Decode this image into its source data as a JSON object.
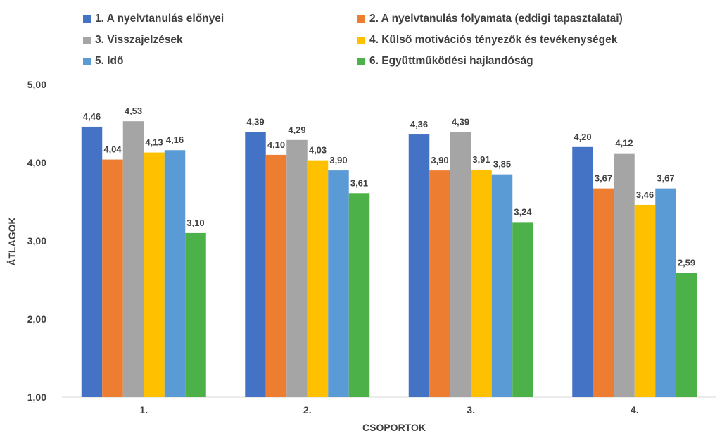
{
  "chart_data": {
    "type": "bar",
    "categories": [
      "1.",
      "2.",
      "3.",
      "4."
    ],
    "series": [
      {
        "name": "1. A nyelvtanulás előnyei",
        "color": "#4472C4",
        "values": [
          4.46,
          4.39,
          4.36,
          4.2
        ],
        "labels": [
          "4,46",
          "4,39",
          "4,36",
          "4,20"
        ]
      },
      {
        "name": "2. A nyelvtanulás folyamata (eddigi tapasztalatai)",
        "color": "#ED7D31",
        "values": [
          4.04,
          4.1,
          3.9,
          3.67
        ],
        "labels": [
          "4,04",
          "4,10",
          "3,90",
          "3,67"
        ]
      },
      {
        "name": "3. Visszajelzések",
        "color": "#A5A5A5",
        "values": [
          4.53,
          4.29,
          4.39,
          4.12
        ],
        "labels": [
          "4,53",
          "4,29",
          "4,39",
          "4,12"
        ]
      },
      {
        "name": "4. Külső motivációs tényezők és tevékenységek",
        "color": "#FFC000",
        "values": [
          4.13,
          4.03,
          3.91,
          3.46
        ],
        "labels": [
          "4,13",
          "4,03",
          "3,91",
          "3,46"
        ]
      },
      {
        "name": "5. Idő",
        "color": "#5B9BD5",
        "values": [
          4.16,
          3.9,
          3.85,
          3.67
        ],
        "labels": [
          "4,16",
          "3,90",
          "3,85",
          "3,67"
        ]
      },
      {
        "name": "6. Együttműködési hajlandóság",
        "color": "#4CB148",
        "values": [
          3.1,
          3.61,
          3.24,
          2.59
        ],
        "labels": [
          "3,10",
          "3,61",
          "3,24",
          "2,59"
        ]
      }
    ],
    "ylim": [
      1,
      5
    ],
    "yticks": [
      1,
      2,
      3,
      4,
      5
    ],
    "ytick_labels": [
      "1,00",
      "2,00",
      "3,00",
      "4,00",
      "5,00"
    ],
    "xlabel": "CSOPORTOK",
    "ylabel": "ÁTLAGOK",
    "grid": false,
    "legend_position": "top"
  }
}
